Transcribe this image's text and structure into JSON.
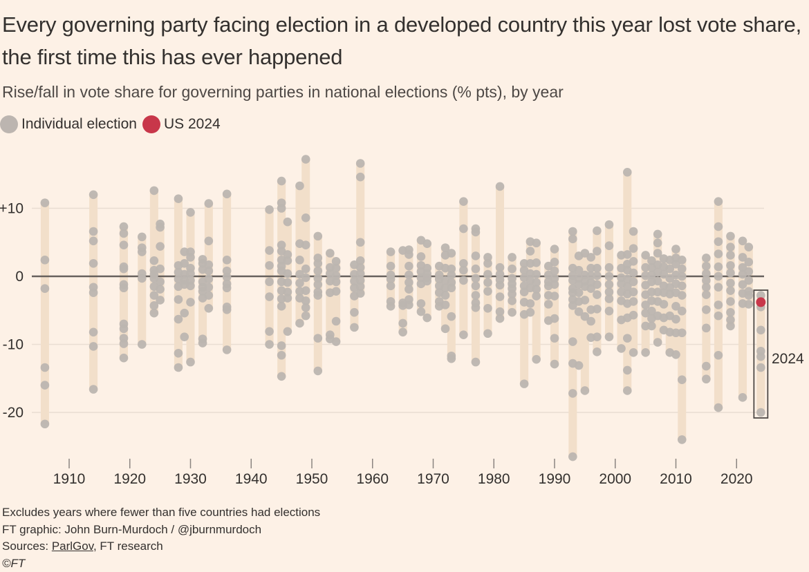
{
  "title": "Every governing party facing election in a developed country this year lost vote share, the first time this has ever happened",
  "subtitle": "Rise/fall in vote share for governing parties in national elections (% pts), by year",
  "legend": [
    {
      "label": "Individual election",
      "color": "#bcb5b0"
    },
    {
      "label": "US 2024",
      "color": "#c8374a"
    }
  ],
  "footer": {
    "note": "Excludes years where fewer than five countries had elections",
    "credit": "FT graphic: John Burn-Murdoch / @jburnmurdoch",
    "sources_prefix": "Sources: ",
    "sources_link": "ParlGov",
    "sources_suffix": ", FT research",
    "copyright": "©FT"
  },
  "colors": {
    "background": "#fdf1e6",
    "range_bar": "#f2dfca",
    "dot": "#bcb5b0",
    "highlight": "#c8374a",
    "zero_line": "#66605c",
    "grid": "#e9ddd2",
    "text": "#33302e"
  },
  "chart_data": {
    "type": "scatter",
    "title": "Every governing party facing election in a developed country this year lost vote share, the first time this has ever happened",
    "subtitle": "Rise/fall in vote share for governing parties in national elections (% pts), by year",
    "xlabel": "",
    "ylabel": "Rise/fall in vote share (% pts)",
    "xlim": [
      1904,
      2026
    ],
    "ylim": [
      -27,
      19
    ],
    "x_ticks": [
      1910,
      1920,
      1930,
      1940,
      1950,
      1960,
      1970,
      1980,
      1990,
      2000,
      2010,
      2020
    ],
    "y_ticks": [
      10,
      0,
      -10,
      -20
    ],
    "y_tick_labels": [
      "+10",
      "0",
      "-10",
      "-20"
    ],
    "grid": true,
    "legend_position": "top-left",
    "annotation": {
      "label": "2024",
      "year": 2024,
      "boxed": true
    },
    "highlight": {
      "label": "US 2024",
      "year": 2024,
      "value": -3.8
    },
    "series": [
      {
        "year": 1906,
        "values": [
          10.8,
          2.4,
          -1.8,
          -13.4,
          -16,
          -21.7
        ]
      },
      {
        "year": 1914,
        "values": [
          12,
          6.6,
          5.2,
          1.9,
          -1.6,
          -2.4,
          -8.2,
          -10.3,
          -16.6
        ]
      },
      {
        "year": 1919,
        "values": [
          7.3,
          6.3,
          4.6,
          1.4,
          1.1,
          -1.2,
          -1.7,
          -7,
          -7.7,
          -9.1,
          -9.9,
          -12
        ]
      },
      {
        "year": 1922,
        "values": [
          5.8,
          4.2,
          3.6,
          0.4,
          -0.3,
          -10
        ]
      },
      {
        "year": 1924,
        "values": [
          12.6,
          2.3,
          0.9,
          0.3,
          -0.3,
          -1.5,
          -2.8,
          -4.3,
          -5.4
        ]
      },
      {
        "year": 1925,
        "values": [
          7.7,
          7.2,
          4.4,
          1.1,
          -0.8,
          -1.9,
          -3.5
        ]
      },
      {
        "year": 1928,
        "values": [
          11.4,
          1.6,
          0.6,
          -0.4,
          -1.5,
          -3.4,
          -6.3,
          -11.3,
          -13.4
        ]
      },
      {
        "year": 1929,
        "values": [
          3.6,
          1.9,
          0.3,
          -0.6,
          -1.2,
          -5.4,
          -8.9
        ]
      },
      {
        "year": 1930,
        "values": [
          9.4,
          3.6,
          2.8,
          1.2,
          0.4,
          -0.6,
          -1.4,
          -3.8,
          -12.6
        ]
      },
      {
        "year": 1932,
        "values": [
          2.5,
          1.9,
          1,
          -0.8,
          -1.6,
          -2.2,
          -3.2,
          -9.2,
          -9.8
        ]
      },
      {
        "year": 1933,
        "values": [
          10.7,
          5.2,
          1.7,
          0.8,
          -0.4,
          -1.6,
          -2.8,
          -4.7
        ]
      },
      {
        "year": 1936,
        "values": [
          12.1,
          2.4,
          0.8,
          -0.1,
          -1.1,
          -1.7,
          -4.5,
          -4.9,
          -10.8
        ]
      },
      {
        "year": 1943,
        "values": [
          9.8,
          3.8,
          1.6,
          -0.8,
          -3,
          -8.1,
          -10
        ]
      },
      {
        "year": 1945,
        "values": [
          14,
          10.8,
          10,
          4.6,
          3.7,
          2.4,
          1.5,
          0.8,
          -0.8,
          -2.1,
          -3.3,
          -4.4,
          -10.2,
          -11.6,
          -14.7
        ]
      },
      {
        "year": 1946,
        "values": [
          8,
          3.2,
          2.3,
          0.4,
          -0.9,
          -2.3,
          -3.2,
          -8.1
        ]
      },
      {
        "year": 1948,
        "values": [
          13.3,
          4.8,
          2.4,
          0.3,
          -1,
          -2.2,
          -3.2,
          -6.9
        ]
      },
      {
        "year": 1949,
        "values": [
          17.2,
          8.6,
          4.6,
          1.1,
          -0.2,
          -2.1,
          -3.6,
          -4.6,
          -5.8
        ]
      },
      {
        "year": 1951,
        "values": [
          5.9,
          2.7,
          1.9,
          0.8,
          -0.3,
          -1.2,
          -2.3,
          -2.8,
          -9.1,
          -13.9
        ]
      },
      {
        "year": 1953,
        "values": [
          3.4,
          1.3,
          0.4,
          -0.7,
          -2.4,
          -8.6,
          -9.2
        ]
      },
      {
        "year": 1954,
        "values": [
          2.2,
          1.2,
          0.1,
          -0.8,
          -2.2,
          -6.6,
          -9.6
        ]
      },
      {
        "year": 1957,
        "values": [
          1.7,
          0.3,
          -0.7,
          -1.7,
          -2.9,
          -5.3,
          -7.5
        ]
      },
      {
        "year": 1958,
        "values": [
          16.6,
          14.6,
          5,
          2.3,
          1.3,
          0.4,
          -0.6,
          -1.5,
          -2.5
        ]
      },
      {
        "year": 1963,
        "values": [
          3.6,
          1.5,
          0.2,
          -0.4,
          -1.4,
          -3.7,
          -4.4
        ]
      },
      {
        "year": 1965,
        "values": [
          3.8,
          -3.9,
          -4.3,
          -6.9,
          -8.2
        ]
      },
      {
        "year": 1966,
        "values": [
          3.9,
          3.2,
          1.5,
          0.2,
          -0.9,
          -1.9,
          -3.4,
          -4.2
        ]
      },
      {
        "year": 1968,
        "values": [
          5.3,
          2.9,
          1.6,
          0.7,
          -0.2,
          -1.1,
          -4,
          -5.2
        ]
      },
      {
        "year": 1969,
        "values": [
          4.8,
          1.2,
          0.4,
          -0.2,
          -0.7,
          -6.1
        ]
      },
      {
        "year": 1971,
        "values": [
          1.5,
          0.2,
          -0.4,
          -1.4,
          -2.4,
          -3.7,
          -4.4
        ]
      },
      {
        "year": 1972,
        "values": [
          4.2,
          3.1,
          1.2,
          -0.6,
          -1.7,
          -2.8,
          -4.2,
          -7.7
        ]
      },
      {
        "year": 1973,
        "values": [
          3.4,
          1.1,
          0.2,
          -0.9,
          -1.7,
          -5.9,
          -11.7,
          -12.1
        ]
      },
      {
        "year": 1975,
        "values": [
          11,
          7,
          1.9,
          0.9,
          -0.6,
          -8.6
        ]
      },
      {
        "year": 1977,
        "values": [
          7,
          6.5,
          3,
          1.1,
          -0.3,
          -1.4,
          -2.8,
          -3.9,
          -4.6,
          -12.6
        ]
      },
      {
        "year": 1979,
        "values": [
          2.8,
          1.9,
          0.3,
          -0.9,
          -2.2,
          -4.7,
          -8.4
        ]
      },
      {
        "year": 1981,
        "values": [
          13.2,
          1.3,
          0.3,
          -0.5,
          -1.3,
          -3,
          -5.2,
          -6.2
        ]
      },
      {
        "year": 1983,
        "values": [
          2.8,
          1.1,
          -0.3,
          -1.1,
          -1.8,
          -2.6,
          -3.6,
          -5.3
        ]
      },
      {
        "year": 1985,
        "values": [
          1.9,
          0.9,
          -0.2,
          -1.4,
          -2.3,
          -3.8,
          -5.6,
          -15.8
        ]
      },
      {
        "year": 1986,
        "values": [
          5.1,
          3.7,
          1.9,
          0.4,
          -0.6,
          -1.7,
          -4,
          -5.3
        ]
      },
      {
        "year": 1987,
        "values": [
          4.9,
          2,
          0.3,
          -0.9,
          -1.9,
          -2.9,
          -12.2
        ]
      },
      {
        "year": 1989,
        "values": [
          1.5,
          0.2,
          -0.8,
          -1.4,
          -2.8,
          -4.1,
          -6.5
        ]
      },
      {
        "year": 1990,
        "values": [
          4,
          2.1,
          0.8,
          -0.3,
          -1.2,
          -2.9,
          -6.2,
          -9.1,
          -12.9
        ]
      },
      {
        "year": 1993,
        "values": [
          6.6,
          5.5,
          1.2,
          0.1,
          -0.6,
          -1.8,
          -2.4,
          -3.4,
          -4.3,
          -9.6,
          -12.8,
          -17.2,
          -26.5
        ]
      },
      {
        "year": 1994,
        "values": [
          3,
          0.9,
          -0.3,
          -1.2,
          -2.4,
          -3.7,
          -5.2,
          -13.1
        ]
      },
      {
        "year": 1995,
        "values": [
          3.4,
          0.2,
          -0.7,
          -1.5,
          -3.5,
          -5.9,
          -16.8
        ]
      },
      {
        "year": 1996,
        "values": [
          2.8,
          1.2,
          0.1,
          -0.9,
          -1.8,
          -4.9,
          -6.6,
          -9
        ]
      },
      {
        "year": 1997,
        "values": [
          6.7,
          3.7,
          1.2,
          0.1,
          -1.2,
          -2.7,
          -4.8,
          -8.9,
          -11.1
        ]
      },
      {
        "year": 1999,
        "values": [
          7.6,
          4.5,
          1.3,
          0,
          -1.2,
          -2.3,
          -3.3,
          -5.1,
          -8.9
        ]
      },
      {
        "year": 2001,
        "values": [
          3.1,
          1.2,
          -0.2,
          -1.1,
          -2.3,
          -3.6,
          -6.4,
          -10.6
        ]
      },
      {
        "year": 2002,
        "values": [
          15.3,
          3.2,
          1.8,
          0.9,
          -0.4,
          -1.5,
          -2.6,
          -4,
          -6.1,
          -9.1,
          -13.8,
          -16.8
        ]
      },
      {
        "year": 2003,
        "values": [
          6.6,
          4.1,
          2.2,
          0.5,
          -0.8,
          -2.3,
          -3.7,
          -5.7,
          -11.2
        ]
      },
      {
        "year": 2005,
        "values": [
          3.1,
          1.3,
          0.1,
          -1.3,
          -2.7,
          -4.2,
          -5.4,
          -7.3,
          -11.2
        ]
      },
      {
        "year": 2006,
        "values": [
          2.3,
          1.3,
          0.2,
          -0.8,
          -2.3,
          -3.6,
          -5.1,
          -6.2,
          -7.3
        ]
      },
      {
        "year": 2007,
        "values": [
          6.2,
          4.9,
          3.4,
          1.7,
          0.6,
          -0.7,
          -2.3,
          -3.7,
          -5.8,
          -9.7
        ]
      },
      {
        "year": 2008,
        "values": [
          2.6,
          1.4,
          0.3,
          -1.4,
          -2.4,
          -4.1,
          -6.1,
          -7.9
        ]
      },
      {
        "year": 2009,
        "values": [
          2.4,
          1.1,
          -0.3,
          -1.6,
          -2.6,
          -5.8,
          -8.2,
          -11.2
        ]
      },
      {
        "year": 2010,
        "values": [
          4,
          2.7,
          1.8,
          0.2,
          -1.1,
          -2.4,
          -4.4,
          -6.3,
          -8.3,
          -11.5
        ]
      },
      {
        "year": 2011,
        "values": [
          2.4,
          1.1,
          0,
          -1.4,
          -2.8,
          -5.1,
          -8.3,
          -15.2,
          -24
        ]
      },
      {
        "year": 2015,
        "values": [
          2.7,
          1.5,
          0.4,
          -0.6,
          -1.6,
          -2.7,
          -4.9,
          -7.6,
          -13.2,
          -15.1
        ]
      },
      {
        "year": 2017,
        "values": [
          11,
          7.3,
          5.1,
          3.3,
          1.4,
          0,
          -1.6,
          -4.2,
          -5.8,
          -11.6,
          -19.3
        ]
      },
      {
        "year": 2019,
        "values": [
          5.9,
          4.3,
          3.1,
          1.6,
          0.5,
          -1,
          -2.1,
          -3.7,
          -5.3,
          -6.4,
          -7.3
        ]
      },
      {
        "year": 2021,
        "values": [
          5.2,
          2.8,
          1.3,
          0.3,
          -1.2,
          -2.5,
          -4,
          -17.8
        ]
      },
      {
        "year": 2022,
        "values": [
          4.3,
          2.1,
          0.7,
          -0.6,
          -2.2,
          -2.8,
          -4.1
        ]
      },
      {
        "year": 2024,
        "values": [
          -2.8,
          -3.8,
          -4.5,
          -7.9,
          -11,
          -11.8,
          -13.4,
          -20
        ]
      }
    ]
  }
}
